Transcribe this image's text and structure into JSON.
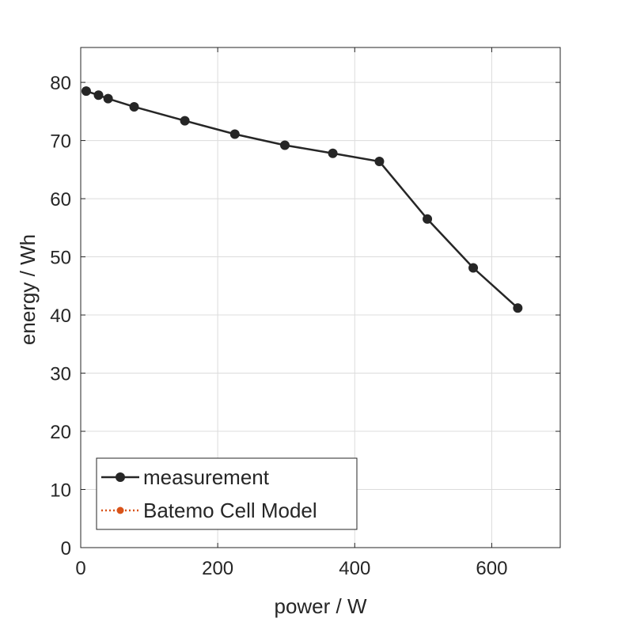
{
  "chart_data": {
    "type": "line",
    "xlabel": "power / W",
    "ylabel": "energy / Wh",
    "xlim": [
      0,
      700
    ],
    "ylim": [
      0,
      86
    ],
    "xticks": [
      0,
      200,
      400,
      600
    ],
    "yticks": [
      0,
      10,
      20,
      30,
      40,
      50,
      60,
      70,
      80
    ],
    "grid": true,
    "legend_position": "bottom-left",
    "series": [
      {
        "name": "measurement",
        "color": "#262626",
        "line_style": "solid",
        "marker": "circle",
        "x": [
          8,
          26,
          40,
          78,
          152,
          225,
          298,
          368,
          436,
          506,
          573,
          638
        ],
        "y": [
          78.5,
          77.8,
          77.2,
          75.8,
          73.4,
          71.1,
          69.2,
          67.8,
          66.4,
          56.5,
          48.1,
          41.2
        ]
      },
      {
        "name": "Batemo Cell Model",
        "color": "#D95319",
        "line_style": "dotted",
        "marker": "circle",
        "x": [],
        "y": []
      }
    ]
  }
}
